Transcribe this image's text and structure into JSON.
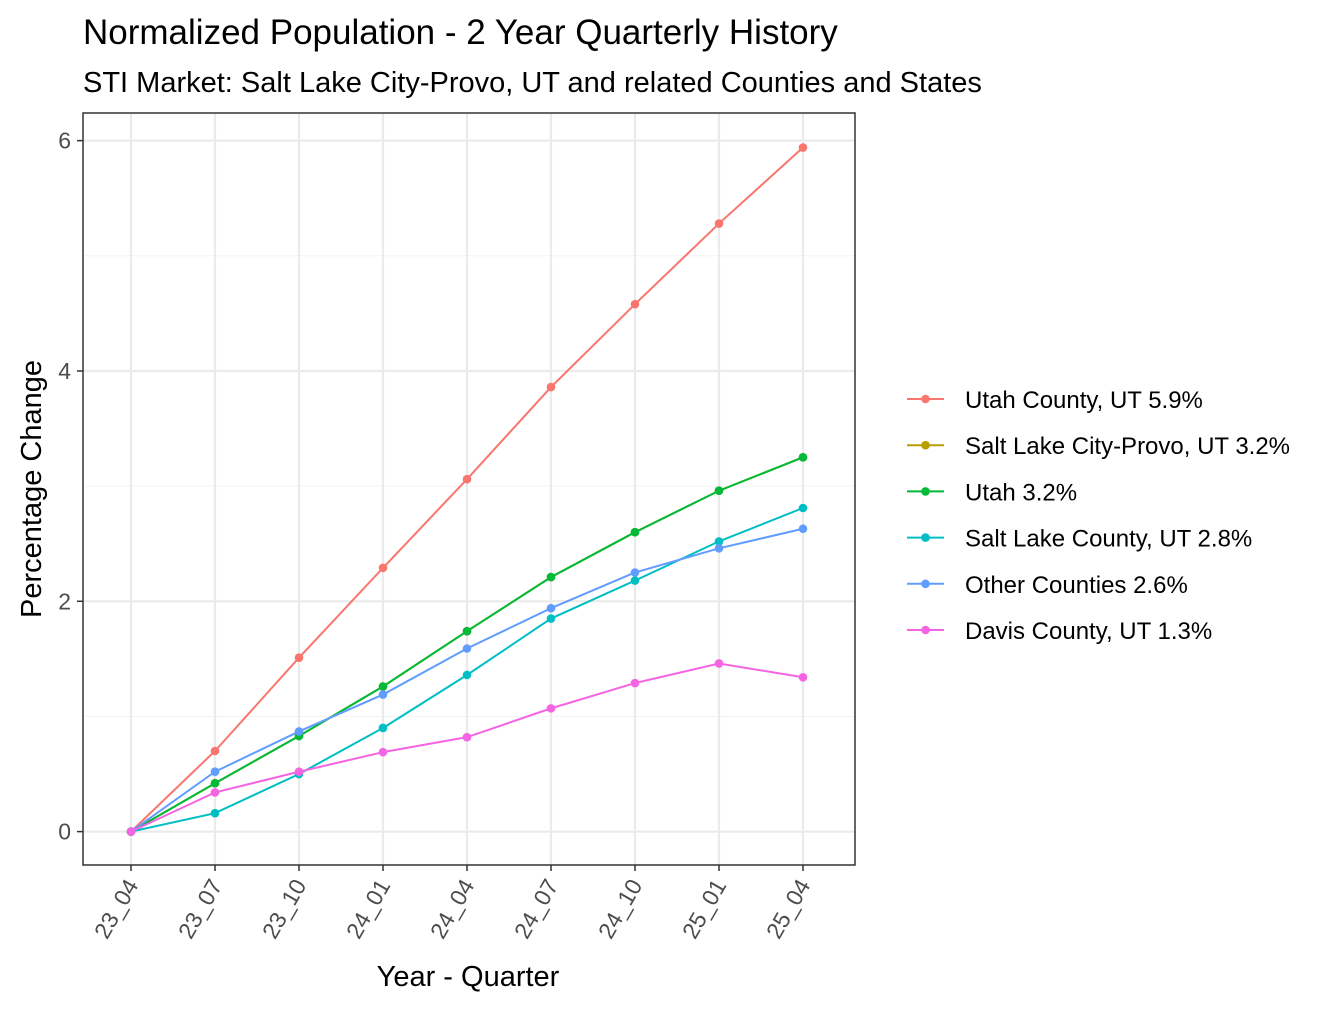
{
  "chart_data": {
    "type": "line",
    "title": "Normalized Population - 2 Year Quarterly History",
    "subtitle": "STI Market: Salt Lake City-Provo, UT and related Counties and States",
    "xlabel": "Year - Quarter",
    "ylabel": "Percentage Change",
    "categories": [
      "23_04",
      "23_07",
      "23_10",
      "24_01",
      "24_04",
      "24_07",
      "24_10",
      "25_01",
      "25_04"
    ],
    "yticks": [
      0,
      2,
      4,
      6
    ],
    "ylim": [
      -0.29,
      6.24
    ],
    "grid": true,
    "legend_position": "right",
    "series": [
      {
        "name": "Utah County, UT 5.9%",
        "color": "#F8766D",
        "values": [
          0,
          0.7,
          1.51,
          2.29,
          3.06,
          3.86,
          4.58,
          5.28,
          5.94
        ]
      },
      {
        "name": "Salt Lake City-Provo, UT 3.2%",
        "color": "#B79F00",
        "values": [
          0,
          0.42,
          0.83,
          1.26,
          1.74,
          2.21,
          2.6,
          2.96,
          3.25
        ]
      },
      {
        "name": "Utah 3.2%",
        "color": "#00BA38",
        "values": [
          0,
          0.42,
          0.83,
          1.26,
          1.74,
          2.21,
          2.6,
          2.96,
          3.25
        ]
      },
      {
        "name": "Salt Lake County, UT 2.8%",
        "color": "#00BFC4",
        "values": [
          0,
          0.16,
          0.5,
          0.9,
          1.36,
          1.85,
          2.18,
          2.52,
          2.81
        ]
      },
      {
        "name": "Other Counties 2.6%",
        "color": "#619CFF",
        "values": [
          0,
          0.52,
          0.87,
          1.19,
          1.59,
          1.94,
          2.25,
          2.46,
          2.63
        ]
      },
      {
        "name": "Davis County, UT 1.3%",
        "color": "#F564E3",
        "values": [
          0,
          0.34,
          0.52,
          0.69,
          0.82,
          1.07,
          1.29,
          1.46,
          1.34
        ]
      }
    ]
  }
}
